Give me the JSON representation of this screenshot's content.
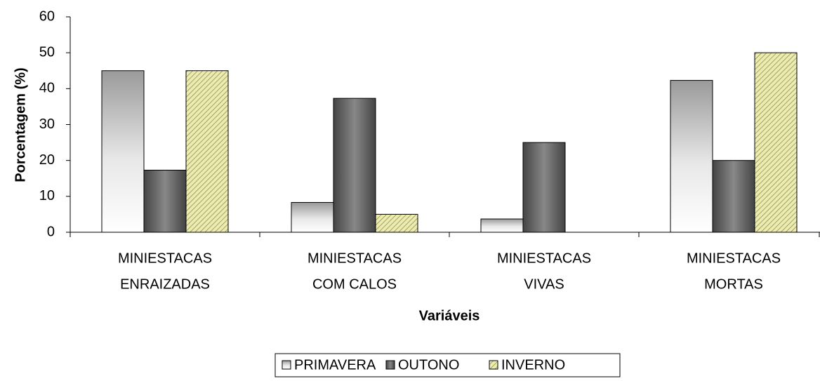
{
  "chart_data": {
    "type": "bar",
    "y_label": "Porcentagem (%)",
    "x_label": "Variáveis",
    "categories": [
      [
        "MINIESTACAS",
        "ENRAIZADAS"
      ],
      [
        "MINIESTACAS",
        "COM CALOS"
      ],
      [
        "MINIESTACAS",
        "VIVAS"
      ],
      [
        "MINIESTACAS",
        "MORTAS"
      ]
    ],
    "series": [
      {
        "name": "PRIMAVERA",
        "color": "#a0a0a0",
        "values": [
          45,
          8.3,
          3.7,
          42.3
        ]
      },
      {
        "name": "OUTONO",
        "color": "#555555",
        "values": [
          17.3,
          37.3,
          25,
          20
        ]
      },
      {
        "name": "INVERNO",
        "color": "#ecebb0",
        "values": [
          45,
          5,
          0,
          50
        ]
      }
    ],
    "ylim": [
      0,
      60
    ],
    "yticks": [
      0,
      10,
      20,
      30,
      40,
      50,
      60
    ],
    "legend": "bottom"
  }
}
